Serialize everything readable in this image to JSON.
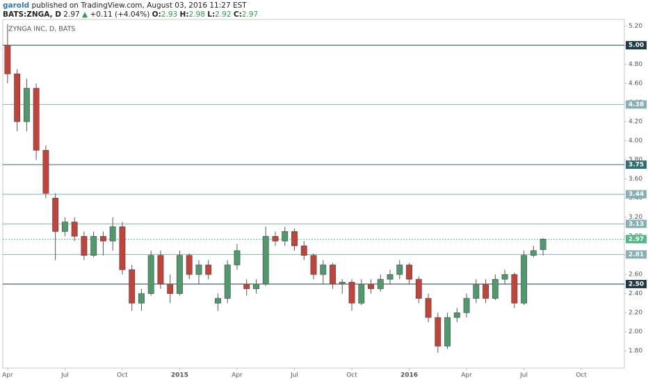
{
  "header": {
    "author": "garold",
    "published": "published on TradingView.com, August 03, 2016 11:27 EST",
    "symbol": "BATS:ZNGA, D",
    "last": "2.97",
    "change": "+0.11 (+4.04%)",
    "ohlc": [
      {
        "label": "O:",
        "value": "2.93"
      },
      {
        "label": "H:",
        "value": "2.98"
      },
      {
        "label": "L:",
        "value": "2.92"
      },
      {
        "label": "C:",
        "value": "2.97"
      }
    ]
  },
  "chart_data": {
    "type": "candlestick",
    "title": "ZYNGA INC, D, BATS",
    "up_color": "#4f9a6d",
    "down_color": "#c0443a",
    "categories": [
      "Apr",
      null,
      null,
      null,
      null,
      null,
      "Jul",
      null,
      null,
      null,
      null,
      null,
      "Oct",
      null,
      null,
      null,
      null,
      null,
      "2015",
      null,
      null,
      null,
      null,
      null,
      "Apr",
      null,
      null,
      null,
      null,
      null,
      "Jul",
      null,
      null,
      null,
      null,
      null,
      "Oct",
      null,
      null,
      null,
      null,
      null,
      "2016",
      null,
      null,
      null,
      null,
      null,
      "Apr",
      null,
      null,
      null,
      null,
      null,
      "Jul",
      null,
      null,
      null,
      null,
      null,
      "Oct",
      null,
      null,
      null,
      null
    ],
    "open": [
      5.0,
      4.7,
      4.2,
      4.55,
      3.9,
      3.4,
      3.05,
      3.15,
      3.0,
      2.8,
      3.0,
      2.95,
      3.1,
      2.65,
      2.3,
      2.4,
      2.8,
      2.5,
      2.4,
      2.8,
      2.6,
      2.7,
      2.3,
      2.35,
      2.7,
      2.5,
      2.45,
      2.5,
      3.0,
      2.95,
      3.05,
      2.9,
      2.8,
      2.6,
      2.7,
      2.5,
      2.52,
      2.3,
      2.5,
      2.45,
      2.55,
      2.6,
      2.7,
      2.55,
      2.35,
      2.15,
      1.85,
      2.15,
      2.2,
      2.35,
      2.5,
      2.35,
      2.55,
      2.6,
      2.3,
      2.8,
      2.86,
      null,
      null,
      null,
      null,
      null,
      null,
      null,
      null
    ],
    "high": [
      5.22,
      4.75,
      4.65,
      4.6,
      3.95,
      3.45,
      3.2,
      3.2,
      3.05,
      3.05,
      3.05,
      3.2,
      3.15,
      2.7,
      2.45,
      2.85,
      2.85,
      2.6,
      2.85,
      2.82,
      2.75,
      2.75,
      2.4,
      2.75,
      2.92,
      2.55,
      2.55,
      3.1,
      3.05,
      3.1,
      3.08,
      2.95,
      2.82,
      2.75,
      2.72,
      2.55,
      2.55,
      2.55,
      2.55,
      2.6,
      2.65,
      2.75,
      2.72,
      2.58,
      2.4,
      2.2,
      2.2,
      2.25,
      2.4,
      2.55,
      2.55,
      2.6,
      2.65,
      2.62,
      2.85,
      2.9,
      2.98,
      null,
      null,
      null,
      null,
      null,
      null,
      null,
      null
    ],
    "low": [
      4.6,
      4.1,
      4.1,
      3.8,
      3.4,
      2.75,
      3.0,
      2.95,
      2.75,
      2.78,
      2.8,
      2.85,
      2.6,
      2.22,
      2.22,
      2.38,
      2.45,
      2.3,
      2.38,
      2.55,
      2.5,
      2.55,
      2.22,
      2.3,
      2.65,
      2.38,
      2.4,
      2.48,
      2.9,
      2.9,
      2.85,
      2.75,
      2.55,
      2.5,
      2.45,
      2.4,
      2.22,
      2.28,
      2.4,
      2.42,
      2.5,
      2.55,
      2.5,
      2.3,
      2.1,
      1.78,
      1.82,
      2.1,
      2.15,
      2.3,
      2.3,
      2.33,
      2.5,
      2.25,
      2.28,
      2.78,
      2.8,
      null,
      null,
      null,
      null,
      null,
      null,
      null,
      null
    ],
    "close": [
      4.7,
      4.2,
      4.55,
      3.9,
      3.45,
      3.05,
      3.15,
      3.0,
      2.8,
      3.0,
      2.95,
      3.1,
      2.65,
      2.3,
      2.4,
      2.8,
      2.5,
      2.4,
      2.8,
      2.6,
      2.7,
      2.6,
      2.35,
      2.7,
      2.85,
      2.45,
      2.5,
      3.0,
      2.95,
      3.05,
      2.9,
      2.8,
      2.6,
      2.7,
      2.5,
      2.52,
      2.3,
      2.5,
      2.45,
      2.55,
      2.6,
      2.7,
      2.55,
      2.35,
      2.15,
      1.85,
      2.15,
      2.2,
      2.35,
      2.5,
      2.35,
      2.55,
      2.6,
      2.3,
      2.8,
      2.85,
      2.97,
      null,
      null,
      null,
      null,
      null,
      null,
      null,
      null
    ],
    "ylim": [
      1.62,
      5.27
    ],
    "yticks": [
      {
        "value": 1.8,
        "label": "1.80"
      },
      {
        "value": 2.0,
        "label": "2.00"
      },
      {
        "value": 2.2,
        "label": "2.20"
      },
      {
        "value": 2.4,
        "label": "2.40"
      },
      {
        "value": 2.6,
        "label": "2.60"
      },
      {
        "value": 2.8,
        "label": "2.80"
      },
      {
        "value": 3.0,
        "label": "3.00"
      },
      {
        "value": 3.2,
        "label": "3.20"
      },
      {
        "value": 3.4,
        "label": "3.40"
      },
      {
        "value": 3.6,
        "label": "3.60"
      },
      {
        "value": 3.8,
        "label": "3.80"
      },
      {
        "value": 4.0,
        "label": "4.00"
      },
      {
        "value": 4.2,
        "label": "4.20"
      },
      {
        "value": 4.4,
        "label": "4.40"
      },
      {
        "value": 4.6,
        "label": "4.60"
      },
      {
        "value": 4.8,
        "label": "4.80"
      },
      {
        "value": 5.0,
        "label": "5.00"
      },
      {
        "value": 5.2,
        "label": "5.20"
      }
    ],
    "levels": [
      {
        "value": 5.0,
        "label": "5.00",
        "color": "#1e3a46"
      },
      {
        "value": 4.38,
        "label": "4.38",
        "color": "#86b0b3"
      },
      {
        "value": 3.75,
        "label": "3.75",
        "color": "#2f6f74"
      },
      {
        "value": 3.44,
        "label": "3.44",
        "color": "#86b0b3"
      },
      {
        "value": 3.13,
        "label": "3.13",
        "color": "#86b0b3"
      },
      {
        "value": 2.97,
        "label": "2.97",
        "color": "#53b987",
        "dashed": true
      },
      {
        "value": 2.81,
        "label": "2.81",
        "color": "#86b0b3"
      },
      {
        "value": 2.5,
        "label": "2.50",
        "color": "#1e3a46"
      }
    ]
  }
}
